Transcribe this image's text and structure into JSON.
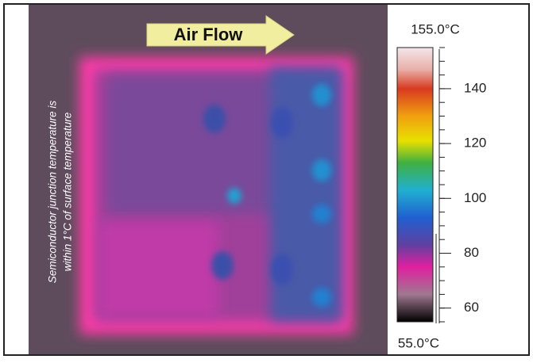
{
  "image": {
    "arrow_label": "Air Flow",
    "side_note": [
      "Semiconductor junction temperature is",
      "within 1°C of surface temperature"
    ]
  },
  "colorbar": {
    "max": {
      "value": 155,
      "label": "155.0°C"
    },
    "min": {
      "value": 55,
      "label": "55.0°C"
    },
    "ticks": [
      140,
      120,
      100,
      80,
      60
    ]
  }
}
